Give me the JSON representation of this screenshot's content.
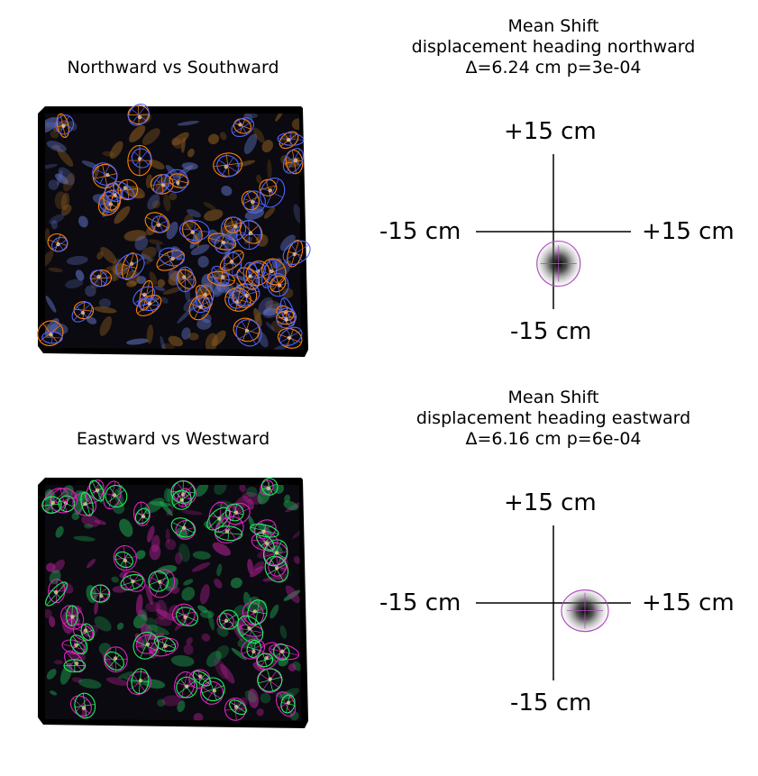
{
  "panels": [
    {
      "map_title": "Northward vs Southward",
      "shift_title": "Mean Shift\ndisplacement heading northward\nΔ=6.24 cm p=3e-04",
      "colors": {
        "a": "#ff8000",
        "b": "#5064ff",
        "bg_warm": "#8a5a20",
        "bg_cool": "#6070c0",
        "shift_ring": "#b050c0"
      },
      "axis_labels": {
        "top": "+15 cm",
        "bottom": "-15 cm",
        "left": "-15 cm",
        "right": "+15 cm"
      },
      "shift_cm": {
        "x": 1.0,
        "y": -6.2
      }
    },
    {
      "map_title": "Eastward vs Westward",
      "shift_title": "Mean Shift\ndisplacement heading eastward\nΔ=6.16 cm p=6e-04",
      "colors": {
        "a": "#e020c0",
        "b": "#20f060",
        "bg_warm": "#b02090",
        "bg_cool": "#20a050",
        "shift_ring": "#b050c0"
      },
      "axis_labels": {
        "top": "+15 cm",
        "bottom": "-15 cm",
        "left": "-15 cm",
        "right": "+15 cm"
      },
      "shift_cm": {
        "x": 6.1,
        "y": -1.5
      }
    }
  ]
}
